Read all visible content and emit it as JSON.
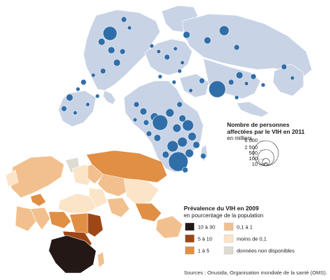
{
  "bubble_map": {
    "legend_title_line1": "Nombre de personnes",
    "legend_title_line2": "affectées par le VIH en 2011",
    "legend_subtitle": "en milliers",
    "legend_sizes": [
      {
        "label": "6 000",
        "value": 6000
      },
      {
        "label": "2 500",
        "value": 2500
      },
      {
        "label": "500",
        "value": 500
      },
      {
        "label": "100",
        "value": 100
      },
      {
        "label": "10",
        "value": 10
      }
    ],
    "colors": {
      "land": "#c9d3e6",
      "border": "#ffffff",
      "bubble": "#2f6ea8",
      "bubble_stroke": "#ffffff"
    }
  },
  "prevalence_map": {
    "legend_title": "Prévalence du VIH en 2009",
    "legend_subtitle": "en pourcentage de la population",
    "classes": [
      {
        "label": "10 à 30",
        "color": "#231815"
      },
      {
        "label": "5 à 10",
        "color": "#9e4716"
      },
      {
        "label": "1 à 5",
        "color": "#e08f45"
      },
      {
        "label": "0,1 à 1",
        "color": "#f2c08e"
      },
      {
        "label": "moins de 0,1",
        "color": "#fbe4c8"
      },
      {
        "label": "données non disponibles",
        "color": "#dedbd3"
      }
    ]
  },
  "source": "Sources : Onusida, Organisation mondiale de la santé (OMS)."
}
